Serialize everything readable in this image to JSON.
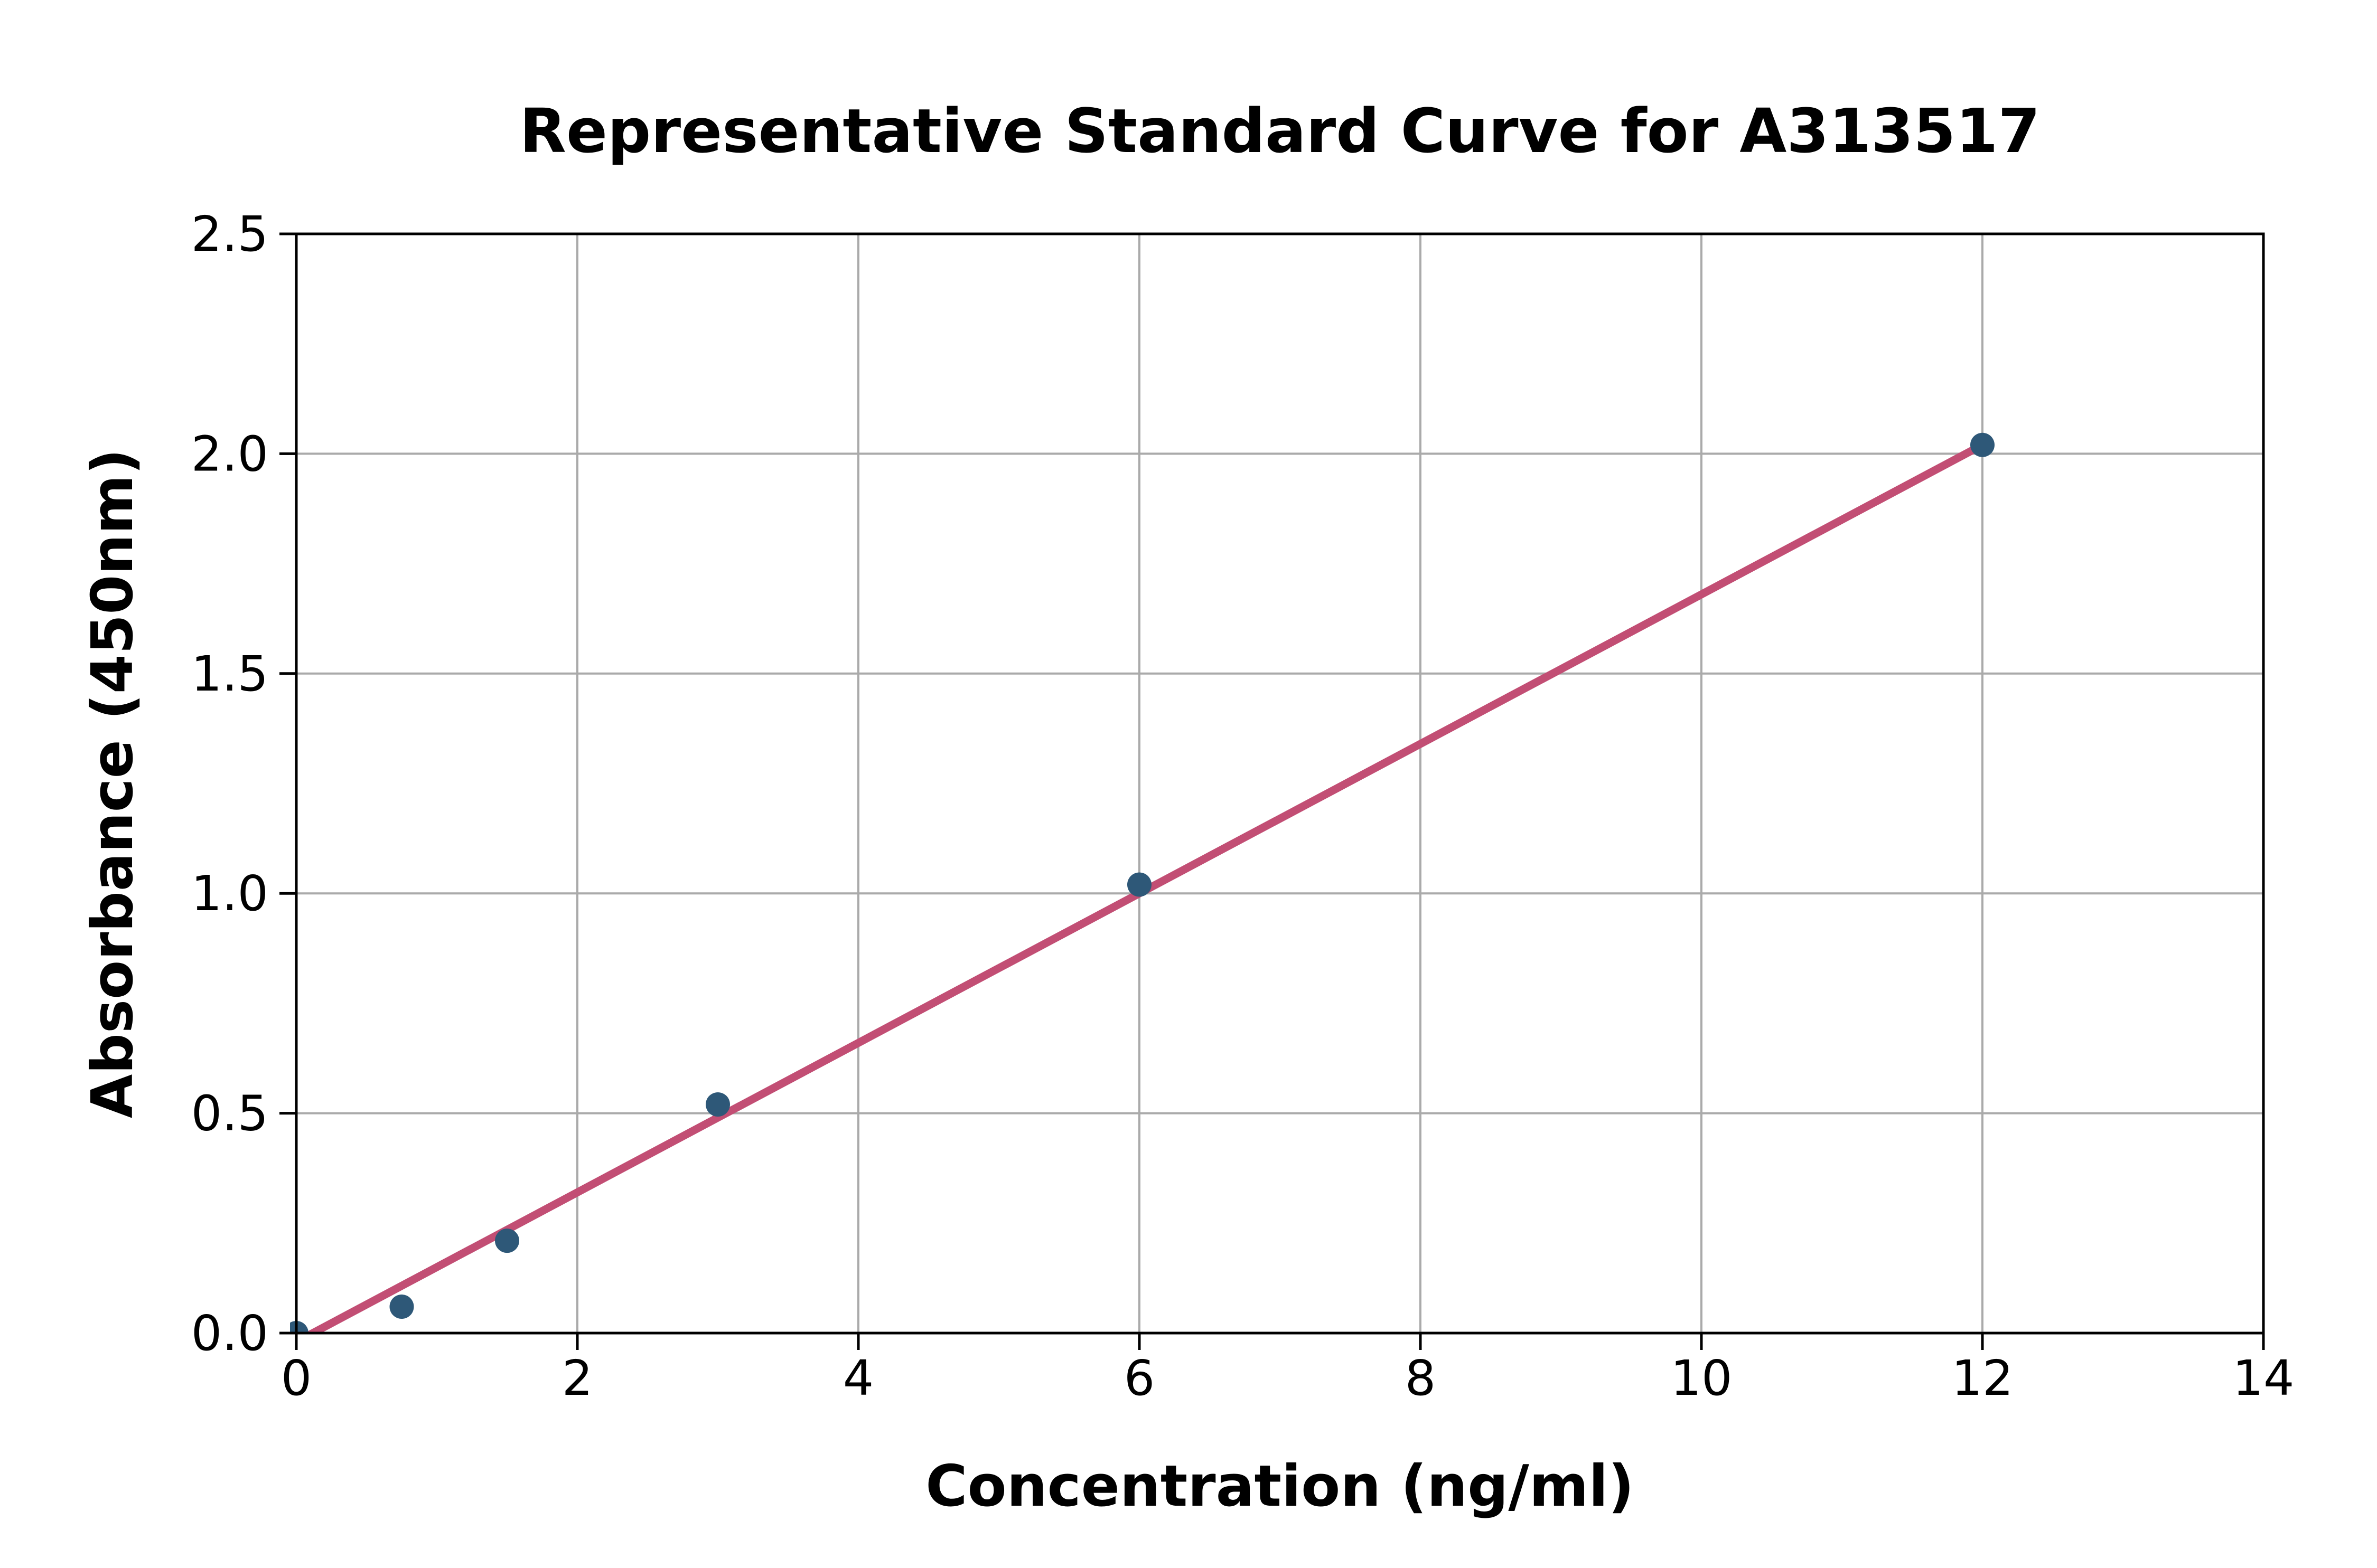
{
  "chart_data": {
    "type": "scatter",
    "title": "Representative Standard Curve for A313517",
    "xlabel": "Concentration (ng/ml)",
    "ylabel": "Absorbance (450nm)",
    "xlim": [
      0,
      14
    ],
    "ylim": [
      0.0,
      2.5
    ],
    "xticks": [
      0,
      2,
      4,
      6,
      8,
      10,
      12,
      14
    ],
    "xtick_labels": [
      "0",
      "2",
      "4",
      "6",
      "8",
      "10",
      "12",
      "14"
    ],
    "yticks": [
      0.0,
      0.5,
      1.0,
      1.5,
      2.0,
      2.5
    ],
    "ytick_labels": [
      "0.0",
      "0.5",
      "1.0",
      "1.5",
      "2.0",
      "2.5"
    ],
    "grid": true,
    "legend_position": "none",
    "series": [
      {
        "name": "standard-points",
        "type": "scatter",
        "color": "#2E5878",
        "points": [
          {
            "x": 0,
            "y": 0.0
          },
          {
            "x": 0.75,
            "y": 0.06
          },
          {
            "x": 1.5,
            "y": 0.21
          },
          {
            "x": 3,
            "y": 0.52
          },
          {
            "x": 6,
            "y": 1.02
          },
          {
            "x": 12,
            "y": 2.02
          }
        ]
      },
      {
        "name": "fit-line",
        "type": "line",
        "color": "#C24E74",
        "points": [
          {
            "x": 0,
            "y": -0.02
          },
          {
            "x": 12,
            "y": 2.02
          }
        ]
      }
    ],
    "colors": {
      "marker": "#2E5878",
      "line": "#C24E74",
      "grid": "#AAAAAA",
      "axis": "#000000",
      "background": "#FFFFFF"
    }
  }
}
